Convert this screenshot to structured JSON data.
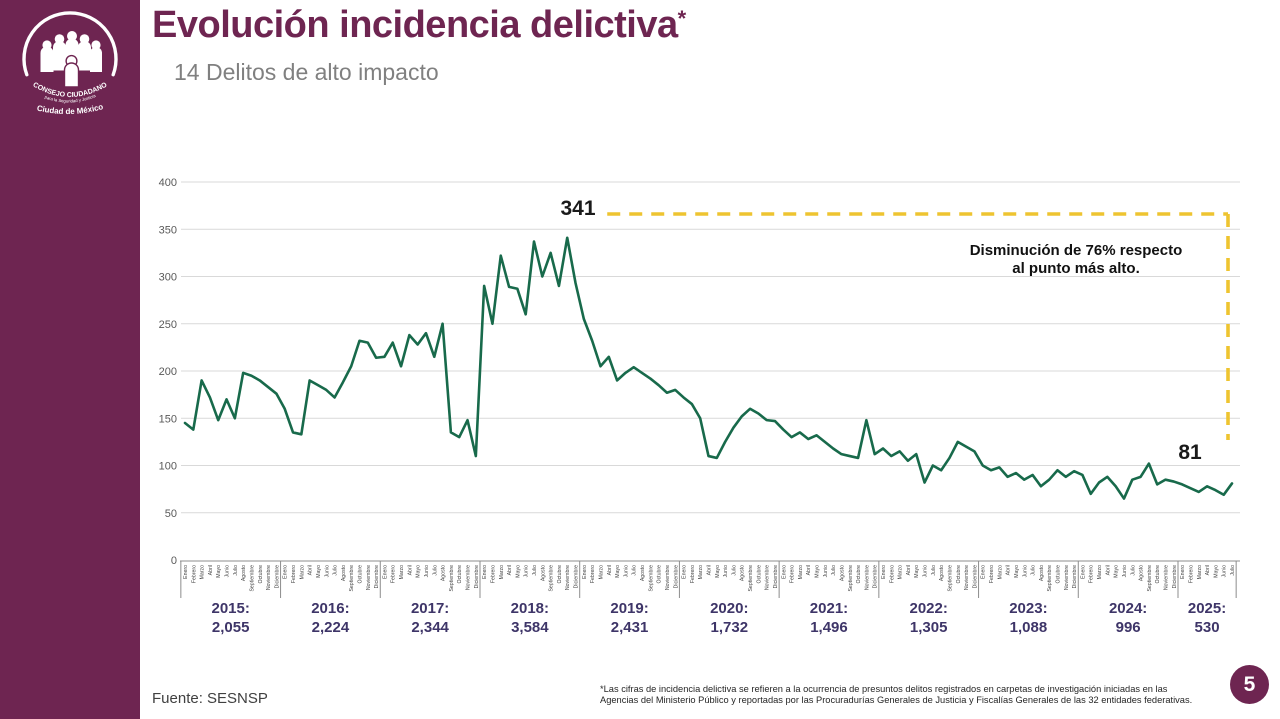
{
  "slide": {
    "title": "Evolución incidencia delictiva",
    "title_asterisk": "*",
    "subtitle": "14 Delitos de alto impacto",
    "page_number": "5",
    "source": "Fuente: SESNSP",
    "footnote_line1": "*Las cifras de incidencia delictiva se refieren a la ocurrencia de presuntos delitos registrados en carpetas de investigación iniciadas en las",
    "footnote_line2": "Agencias del Ministerio Público y reportadas por las Procuradurías Generales de Justicia y Fiscalías Generales de las 32 entidades federativas."
  },
  "logo": {
    "org_line1": "CONSEJO CIUDADANO",
    "org_line2": "para la Seguridad y Justicia",
    "org_line3": "Ciudad de México"
  },
  "annotations": {
    "peak_label": "341",
    "last_label": "81",
    "callout_line1": "Disminución de 76% respecto",
    "callout_line2": "al punto más alto."
  },
  "colors": {
    "brand_purple": "#6e2551",
    "line_green": "#186a4b",
    "accent_yellow": "#eec430",
    "year_label": "#3e3568",
    "grid": "#d9d9d9",
    "axis_text": "#595959",
    "month_text": "#3f3f3f"
  },
  "chart_data": {
    "type": "line",
    "title": "Evolución incidencia delictiva — 14 Delitos de alto impacto",
    "xlabel": "",
    "ylabel": "",
    "ylim": [
      0,
      400
    ],
    "ytick_step": 50,
    "grid": true,
    "legend": "none",
    "months": [
      "Enero",
      "Febrero",
      "Marzo",
      "Abril",
      "Mayo",
      "Junio",
      "Julio",
      "Agosto",
      "Septiembre",
      "Octubre",
      "Noviembre",
      "Diciembre"
    ],
    "years": [
      {
        "year": "2015",
        "label": "2015:",
        "total_label": "2,055",
        "total": 2055,
        "n_months": 12
      },
      {
        "year": "2016",
        "label": "2016:",
        "total_label": "2,224",
        "total": 2224,
        "n_months": 12
      },
      {
        "year": "2017",
        "label": "2017:",
        "total_label": "2,344",
        "total": 2344,
        "n_months": 12
      },
      {
        "year": "2018",
        "label": "2018:",
        "total_label": "3,584",
        "total": 3584,
        "n_months": 12
      },
      {
        "year": "2019",
        "label": "2019:",
        "total_label": "2,431",
        "total": 2431,
        "n_months": 12
      },
      {
        "year": "2020",
        "label": "2020:",
        "total_label": "1,732",
        "total": 1732,
        "n_months": 12
      },
      {
        "year": "2021",
        "label": "2021:",
        "total_label": "1,496",
        "total": 1496,
        "n_months": 12
      },
      {
        "year": "2022",
        "label": "2022:",
        "total_label": "1,305",
        "total": 1305,
        "n_months": 12
      },
      {
        "year": "2023",
        "label": "2023:",
        "total_label": "1,088",
        "total": 1088,
        "n_months": 12
      },
      {
        "year": "2024",
        "label": "2024:",
        "total_label": "996",
        "total": 996,
        "n_months": 12
      },
      {
        "year": "2025",
        "label": "2025:",
        "total_label": "530",
        "total": 530,
        "n_months": 7
      }
    ],
    "peak": {
      "year": "2018",
      "value": 341
    },
    "last": {
      "year": "2025",
      "month": "Julio",
      "value": 81
    },
    "monthly_values": [
      145,
      138,
      190,
      172,
      148,
      170,
      150,
      198,
      195,
      190,
      183,
      176,
      160,
      135,
      133,
      190,
      185,
      180,
      172,
      188,
      205,
      232,
      230,
      214,
      215,
      230,
      205,
      238,
      228,
      240,
      215,
      250,
      135,
      130,
      148,
      110,
      290,
      250,
      322,
      289,
      287,
      260,
      337,
      300,
      325,
      290,
      341,
      293,
      255,
      232,
      205,
      215,
      190,
      198,
      204,
      198,
      192,
      185,
      177,
      180,
      172,
      165,
      150,
      110,
      108,
      125,
      140,
      152,
      160,
      155,
      148,
      147,
      138,
      130,
      135,
      128,
      132,
      125,
      118,
      112,
      110,
      108,
      148,
      112,
      118,
      110,
      115,
      105,
      112,
      82,
      100,
      95,
      108,
      125,
      120,
      115,
      100,
      95,
      98,
      88,
      92,
      85,
      90,
      78,
      85,
      95,
      88,
      94,
      90,
      70,
      82,
      88,
      78,
      65,
      85,
      88,
      102,
      80,
      85,
      83,
      80,
      76,
      72,
      78,
      74,
      69,
      81
    ]
  }
}
